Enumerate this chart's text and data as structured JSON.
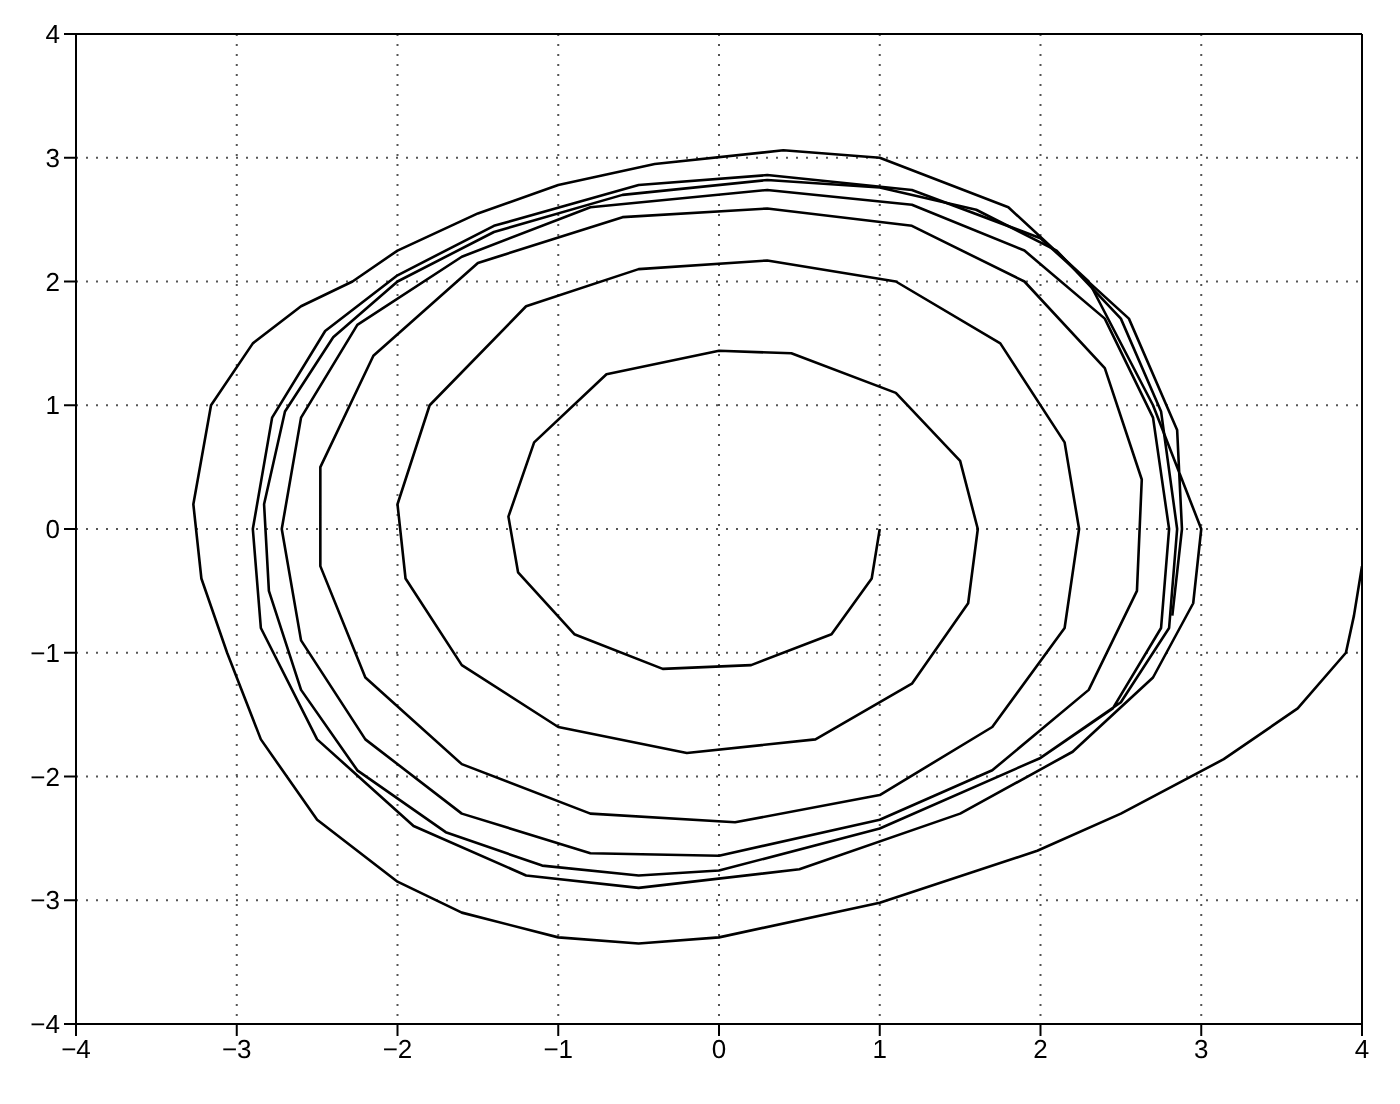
{
  "chart_data": {
    "type": "line",
    "xlim": [
      -4,
      4
    ],
    "ylim": [
      -4,
      4
    ],
    "xticks": [
      -4,
      -3,
      -2,
      -1,
      0,
      1,
      2,
      3,
      4
    ],
    "yticks": [
      -4,
      -3,
      -2,
      -1,
      0,
      1,
      2,
      3,
      4
    ],
    "grid": true,
    "marker": "none",
    "line_style": "solid",
    "series": [
      {
        "color": "#000000",
        "x": [
          1,
          0.95,
          0.7,
          0.2,
          -0.35,
          -0.9,
          -1.25,
          -1.31,
          -1.15,
          -0.7,
          0,
          0.45,
          1.1,
          1.5,
          1.61,
          1.55,
          1.2,
          0.6,
          -0.2,
          -1.0,
          -1.6,
          -1.95,
          -2.0,
          -1.8,
          -1.2,
          -0.5,
          0.3,
          1.1,
          1.75,
          2.15,
          2.24,
          2.15,
          1.7,
          1.0,
          0.1,
          -0.8,
          -1.6,
          -2.2,
          -2.48,
          -2.48,
          -2.15,
          -1.5,
          -0.6,
          0.3,
          1.2,
          1.9,
          2.4,
          2.63,
          2.6,
          2.3,
          1.7,
          1,
          0,
          -0.8,
          -1.6,
          -2.2,
          -2.6,
          -2.72,
          -2.6,
          -2.25,
          -1.6,
          -0.8,
          0.3,
          1.2,
          1.9,
          2.4,
          2.7,
          2.8,
          2.75,
          2.45,
          2,
          1,
          0,
          -0.5,
          -1.1,
          -1.7,
          -2.25,
          -2.6,
          -2.8,
          -2.83,
          -2.7,
          -2.4,
          -2,
          -1.4,
          -0.6,
          0.3,
          1,
          1.6,
          2.1,
          2.5,
          2.75,
          2.85,
          2.8,
          2.5,
          2
        ],
        "values": [
          0,
          -0.4,
          -0.85,
          -1.1,
          -1.13,
          -0.85,
          -0.35,
          0.1,
          0.7,
          1.25,
          1.44,
          1.42,
          1.1,
          0.55,
          0,
          -0.6,
          -1.25,
          -1.7,
          -1.81,
          -1.6,
          -1.1,
          -0.4,
          0.2,
          1.0,
          1.8,
          2.1,
          2.17,
          2.0,
          1.5,
          0.7,
          0,
          -0.8,
          -1.6,
          -2.15,
          -2.37,
          -2.3,
          -1.9,
          -1.2,
          -0.3,
          0.5,
          1.4,
          2.15,
          2.52,
          2.59,
          2.45,
          2.0,
          1.3,
          0.4,
          -0.5,
          -1.3,
          -1.95,
          -2.35,
          -2.64,
          -2.62,
          -2.3,
          -1.7,
          -0.9,
          0,
          0.9,
          1.65,
          2.2,
          2.6,
          2.74,
          2.62,
          2.25,
          1.7,
          0.9,
          0,
          -0.8,
          -1.45,
          -1.85,
          -2.42,
          -2.76,
          -2.8,
          -2.72,
          -2.45,
          -1.95,
          -1.3,
          -0.5,
          0.2,
          0.95,
          1.55,
          2,
          2.4,
          2.7,
          2.82,
          2.76,
          2.58,
          2.25,
          1.7,
          0.95,
          0,
          -0.8,
          -1.4,
          -1.85
        ]
      },
      {
        "color": "#000000",
        "x": [
          4,
          3.95,
          3.9,
          3.6,
          3.14,
          2.5,
          1.98,
          1,
          0,
          -0.5,
          -1,
          -1.6,
          -2,
          -2.5,
          -2.85,
          -3.06,
          -3.22,
          -3.27,
          -3.16,
          -2.9,
          -2.6,
          -2.28,
          -2,
          -1.5,
          -1,
          -0.4,
          0.4,
          1,
          1.8,
          2.3,
          2.7,
          3.0,
          2.95,
          2.7,
          2.2,
          1.5,
          0.5,
          -0.5,
          -1.2,
          -1.9,
          -2.5,
          -2.85,
          -2.9,
          -2.78,
          -2.45,
          -2,
          -1.4,
          -0.5,
          0.3,
          1.2,
          2,
          2.55,
          2.85,
          2.88,
          2.82
        ],
        "values": [
          -0.3,
          -0.7,
          -1,
          -1.45,
          -1.86,
          -2.3,
          -2.6,
          -3.02,
          -3.3,
          -3.35,
          -3.3,
          -3.1,
          -2.85,
          -2.35,
          -1.7,
          -1,
          -0.4,
          0.2,
          1,
          1.5,
          1.8,
          2,
          2.25,
          2.55,
          2.78,
          2.95,
          3.06,
          3.0,
          2.6,
          2.0,
          1,
          0,
          -0.6,
          -1.2,
          -1.8,
          -2.3,
          -2.75,
          -2.9,
          -2.8,
          -2.4,
          -1.7,
          -0.8,
          0,
          0.9,
          1.6,
          2.05,
          2.45,
          2.78,
          2.86,
          2.74,
          2.35,
          1.7,
          0.8,
          0,
          -0.7
        ]
      }
    ]
  }
}
